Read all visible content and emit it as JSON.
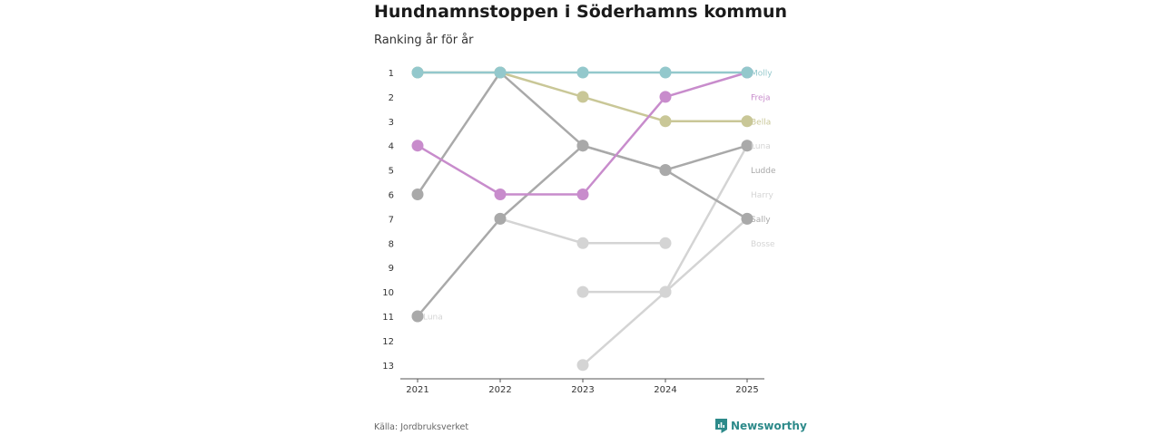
{
  "title": "Hundnamnstoppen i Söderhamns kommun",
  "subtitle": "Ranking år för år",
  "source": "Källa: Jordbruksverket",
  "brand": "Newsworthy",
  "brand_color": "#2d8a8a",
  "chart_data": {
    "type": "line",
    "title": "Hundnamnstoppen i Söderhamns kommun",
    "subtitle": "Ranking år för år",
    "x": [
      "2021",
      "2022",
      "2023",
      "2024",
      "2025"
    ],
    "y_ticks": [
      1,
      2,
      3,
      4,
      5,
      6,
      7,
      8,
      9,
      10,
      11,
      12,
      13
    ],
    "ylim": [
      1,
      13
    ],
    "y_reversed": true,
    "series": [
      {
        "name": "Harry",
        "color": "#d4d4d4",
        "values": [
          null,
          7,
          8,
          8,
          null
        ],
        "end_label": "Harry",
        "end_label_rank": 6
      },
      {
        "name": "Bosse",
        "color": "#d4d4d4",
        "values": [
          null,
          null,
          10,
          10,
          7
        ],
        "end_label": "Bosse",
        "end_label_rank": 8
      },
      {
        "name": "Luna",
        "color": "#d4d4d4",
        "values": [
          11,
          null,
          13,
          10,
          4
        ],
        "end_label": "Luna",
        "end_label_rank": 4
      },
      {
        "name": "Ludde",
        "color": "#a9a9a9",
        "values": [
          11,
          7,
          4,
          5,
          4
        ],
        "end_label": "Ludde",
        "end_label_rank": 5
      },
      {
        "name": "Sally",
        "color": "#a9a9a9",
        "values": [
          6,
          1,
          4,
          5,
          7
        ],
        "end_label": "Sally",
        "end_label_rank": 7
      },
      {
        "name": "Bella",
        "color": "#c9c797",
        "values": [
          1,
          1,
          2,
          3,
          3
        ],
        "end_label": "Bella",
        "end_label_rank": 3
      },
      {
        "name": "Freja",
        "color": "#c88ccc",
        "values": [
          4,
          6,
          6,
          2,
          1
        ],
        "end_label": "Freja",
        "end_label_rank": 2
      },
      {
        "name": "Molly",
        "color": "#93c8cc",
        "values": [
          1,
          1,
          1,
          1,
          1
        ],
        "end_label": "Molly",
        "end_label_rank": 1
      }
    ],
    "annotations": [
      {
        "text": "Luna",
        "x": "2021",
        "rank": 11
      }
    ]
  }
}
